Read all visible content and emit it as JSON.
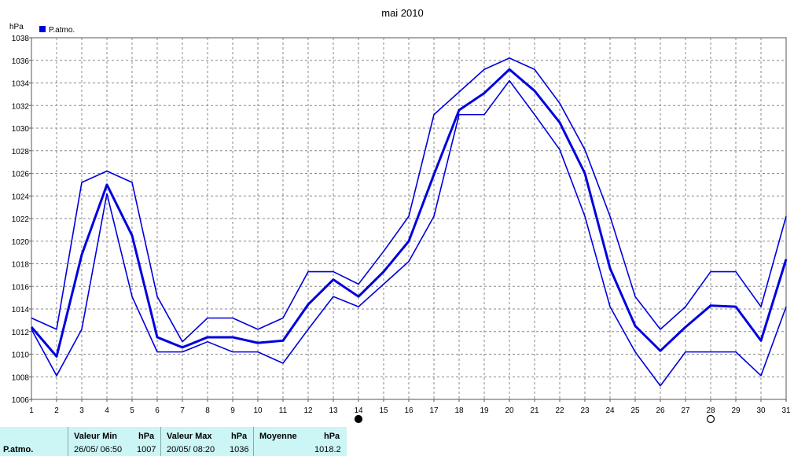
{
  "chart_data": {
    "type": "line",
    "title": "mai 2010",
    "ylabel": "hPa",
    "legend": [
      "P.atmo."
    ],
    "legend_position": "top-left",
    "x": [
      1,
      2,
      3,
      4,
      5,
      6,
      7,
      8,
      9,
      10,
      11,
      12,
      13,
      14,
      15,
      16,
      17,
      18,
      19,
      20,
      21,
      22,
      23,
      24,
      25,
      26,
      27,
      28,
      29,
      30,
      31
    ],
    "xlim": [
      1,
      31
    ],
    "ylim": [
      1006,
      1038
    ],
    "yticks": [
      1006,
      1008,
      1010,
      1012,
      1014,
      1016,
      1018,
      1020,
      1022,
      1024,
      1026,
      1028,
      1030,
      1032,
      1034,
      1036,
      1038
    ],
    "grid": true,
    "line_color": "#0000dd",
    "series": [
      {
        "name": "P.atmo.",
        "role": "max",
        "values": [
          1013.2,
          1012.2,
          1025.2,
          1026.2,
          1025.2,
          1015.1,
          1011.1,
          1013.2,
          1013.2,
          1012.2,
          1013.2,
          1017.3,
          1017.3,
          1016.2,
          1019.1,
          1022.2,
          1031.2,
          1033.2,
          1035.2,
          1036.2,
          1035.2,
          1032.2,
          1028.1,
          1022.2,
          1015.1,
          1012.2,
          1014.2,
          1017.3,
          1017.3,
          1014.2,
          1022.2
        ]
      },
      {
        "name": "P.atmo.",
        "role": "mean",
        "values": [
          1012.4,
          1009.8,
          1018.8,
          1025.0,
          1020.5,
          1011.5,
          1010.6,
          1011.5,
          1011.5,
          1011.0,
          1011.2,
          1014.4,
          1016.6,
          1015.1,
          1017.3,
          1020.0,
          1025.9,
          1031.6,
          1033.1,
          1035.2,
          1033.3,
          1030.5,
          1026.0,
          1017.6,
          1012.5,
          1010.3,
          1012.4,
          1014.3,
          1014.2,
          1011.2,
          1018.4
        ]
      },
      {
        "name": "P.atmo.",
        "role": "min",
        "values": [
          1012.2,
          1008.1,
          1012.2,
          1024.2,
          1015.1,
          1010.2,
          1010.2,
          1011.1,
          1010.2,
          1010.2,
          1009.2,
          1012.2,
          1015.1,
          1014.2,
          1016.2,
          1018.2,
          1022.2,
          1031.2,
          1031.2,
          1034.2,
          1031.2,
          1028.1,
          1022.2,
          1014.2,
          1010.2,
          1007.2,
          1010.2,
          1010.2,
          1010.2,
          1008.1,
          1014.2
        ]
      }
    ],
    "moon_phases": [
      {
        "day": 14,
        "phase": "new"
      },
      {
        "day": 28,
        "phase": "full"
      }
    ]
  },
  "stats": {
    "row_label": "P.atmo.",
    "min_header": "Valeur Min",
    "max_header": "Valeur Max",
    "mean_header": "Moyenne",
    "unit": "hPa",
    "min_when": "26/05/  06:50",
    "min_value": "1007",
    "max_when": "20/05/  08:20",
    "max_value": "1036",
    "mean_value": "1018.2"
  }
}
